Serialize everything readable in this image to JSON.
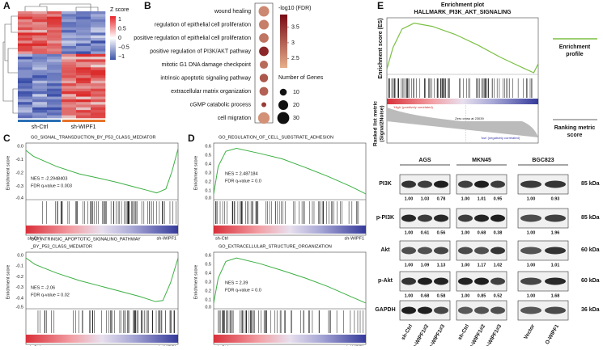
{
  "panel_labels": [
    "A",
    "B",
    "C",
    "D",
    "E"
  ],
  "heatmap": {
    "legend_title": "Z score",
    "legend_ticks": [
      "1",
      "0.5",
      "0",
      "−0.5",
      "−1"
    ],
    "groups": [
      "sh-Ctrl",
      "sh-WIPF1"
    ]
  },
  "dotplot": {
    "terms": [
      "wound healing",
      "regulation of epithelial cell proliferation",
      "positive regulation of epithelial cell proliferation",
      "positive regulation of PI3K/AKT pathway",
      "mitotic G1 DNA damage checkpoint",
      "intrinsic apoptotic signaling pathway",
      "extracellular matrix organization",
      "cGMP catabolic process",
      "cell migration"
    ],
    "neg_log10_fdr": [
      2.6,
      2.7,
      2.8,
      3.6,
      2.9,
      3.1,
      3.0,
      3.4,
      2.5
    ],
    "genes": [
      23,
      20,
      19,
      19,
      14,
      15,
      16,
      5,
      28
    ],
    "color_title": "-log10 (FDR)",
    "color_lim": [
      2.2,
      3.9
    ],
    "color_ticks": [
      3.5,
      3,
      2.5
    ],
    "size_title": "Number of Genes",
    "size_ticks": [
      10,
      20,
      30
    ]
  },
  "gsea": [
    {
      "title_lines": [
        "GO_SIGNAL_TRANSDUCTION_BY_P53_CLASS_MEDIATOR"
      ],
      "y_label": "Enrichment score",
      "y_ticks": [
        "0.0",
        "-0.1",
        "-0.2",
        "-0.3",
        "-0.4"
      ],
      "nes": "NES = -2.2948403",
      "fdr": "FDR q-value = 0.003",
      "left": "sh-Ctrl",
      "right": "sh-WIPF1"
    },
    {
      "title_lines": [
        "GO_INTRINSIC_APOPTOTIC_SIGNALING_PATHWAY",
        "_BY_P53_CLASS_MEDIATOR"
      ],
      "y_label": "Enrichment score",
      "y_ticks": [
        "0.0",
        "-0.1",
        "-0.2",
        "-0.3",
        "-0.4",
        "-0.5"
      ],
      "nes": "NES = -2.06",
      "fdr": "FDR q-value = 0.02",
      "left": "sh-Ctrl",
      "right": "sh-WIPF1"
    },
    {
      "title_lines": [
        "GO_REGULATION_OF_CELL_SUBSTRATE_ADHESION"
      ],
      "y_label": "Enrichment score",
      "y_ticks": [
        "0.6",
        "0.5",
        "0.4",
        "0.3",
        "0.2",
        "0.1",
        "0.0"
      ],
      "nes": "NES = 2.487184",
      "fdr": "FDR q-value = 0.0",
      "left": "sh-Ctrl",
      "right": "sh-WIPF1"
    },
    {
      "title_lines": [
        "GO_EXTRACELLULAR_STRUCTURE_ORGANIZATION"
      ],
      "y_label": "Enrichment score",
      "y_ticks": [
        "0.6",
        "0.5",
        "0.4",
        "0.3",
        "0.2",
        "0.1",
        "0.0"
      ],
      "nes": "NES = 2.39",
      "fdr": "FDR q-value = 0.0",
      "left": "sh-Ctrl",
      "right": "sh-WIPF1"
    }
  ],
  "hallmark": {
    "title": "Enrichment plot",
    "subtitle": "HALLMARK_PI3K_AKT_SIGNALING",
    "es_label": "Enrichment score (ES)",
    "metric_label_lines": [
      "Ranked list metric",
      "(Signal2Noise)"
    ],
    "high": "'High' (positively correlated)",
    "zero_cross": "Zero cross at 23039",
    "low": "'low' (negatively correlated)",
    "legend_profile": [
      "Enrichment",
      "profile"
    ],
    "legend_metric": [
      "Ranking metric",
      "score"
    ]
  },
  "western": {
    "groups": [
      "AGS",
      "MKN45",
      "BGC823"
    ],
    "rows": [
      {
        "name": "PI3K",
        "kda": "85 kDa",
        "ratios": [
          "1.00",
          "1.03",
          "0.78",
          "1.00",
          "1.01",
          "0.95",
          "1.00",
          "0.93"
        ]
      },
      {
        "name": "p-PI3K",
        "kda": "85 kDa",
        "ratios": [
          "1.00",
          "0.61",
          "0.56",
          "1.00",
          "0.68",
          "0.38",
          "1.00",
          "1.96"
        ]
      },
      {
        "name": "Akt",
        "kda": "60 kDa",
        "ratios": [
          "1.00",
          "1.09",
          "1.13",
          "1.00",
          "1.17",
          "1.02",
          "1.00",
          "1.01"
        ]
      },
      {
        "name": "p-Akt",
        "kda": "60 kDa",
        "ratios": [
          "1.00",
          "0.68",
          "0.58",
          "1.00",
          "0.85",
          "0.52",
          "1.00",
          "1.68"
        ]
      },
      {
        "name": "GAPDH",
        "kda": "36 kDa",
        "ratios": []
      }
    ],
    "lanes": [
      "sh-Ctrl",
      "sh-WIPF1#2",
      "sh-WIPF1#3",
      "sh-Ctrl",
      "sh-WIPF1#2",
      "sh-WIPF1#3",
      "Vector",
      "O-WIPF1"
    ]
  }
}
